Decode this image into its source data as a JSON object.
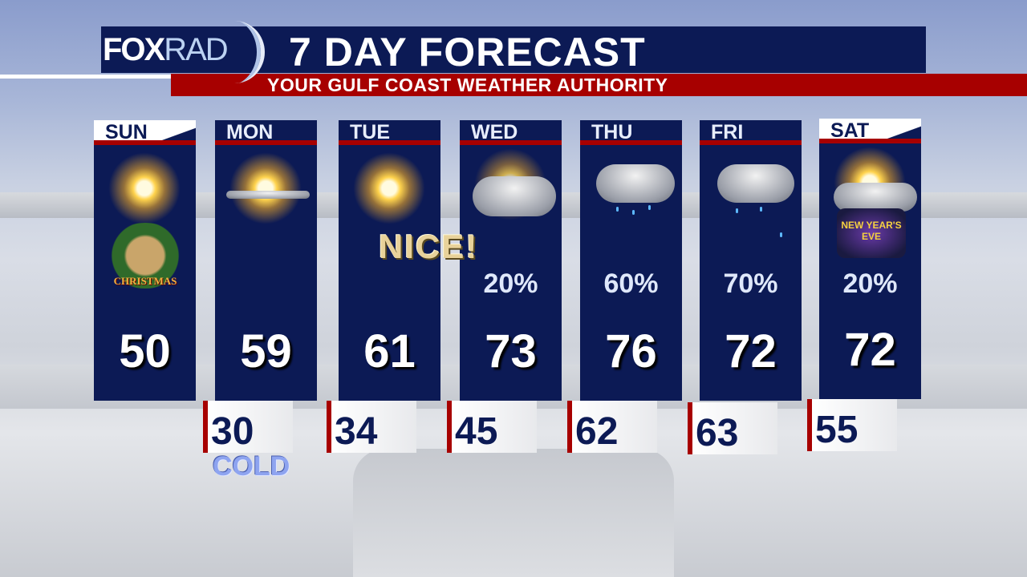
{
  "header": {
    "logo": {
      "fox": "FOX",
      "rad": "RAD"
    },
    "title": "7 DAY FORECAST",
    "subtitle": "YOUR GULF COAST WEATHER AUTHORITY"
  },
  "colors": {
    "navy": "#0c1a55",
    "red": "#a70000"
  },
  "days": [
    {
      "day": "SUN",
      "high": "50",
      "low": null,
      "precip": null,
      "icon": "sunny-icon",
      "badge": "CHRISTMAS"
    },
    {
      "day": "MON",
      "high": "59",
      "low": "30",
      "precip": null,
      "icon": "mostly-sunny-icon"
    },
    {
      "day": "TUE",
      "high": "61",
      "low": "34",
      "precip": null,
      "icon": "sunny-icon"
    },
    {
      "day": "WED",
      "high": "73",
      "low": "45",
      "precip": "20%",
      "icon": "cloudy-icon"
    },
    {
      "day": "THU",
      "high": "76",
      "low": "62",
      "precip": "60%",
      "icon": "showers-icon"
    },
    {
      "day": "FRI",
      "high": "72",
      "low": "63",
      "precip": "70%",
      "icon": "showers-icon"
    },
    {
      "day": "SAT",
      "high": "72",
      "low": "55",
      "precip": "20%",
      "icon": "partly-cloudy-icon",
      "badge": "NEW YEAR'S EVE"
    }
  ],
  "callouts": {
    "nice": "NICE!",
    "cold": "COLD"
  }
}
